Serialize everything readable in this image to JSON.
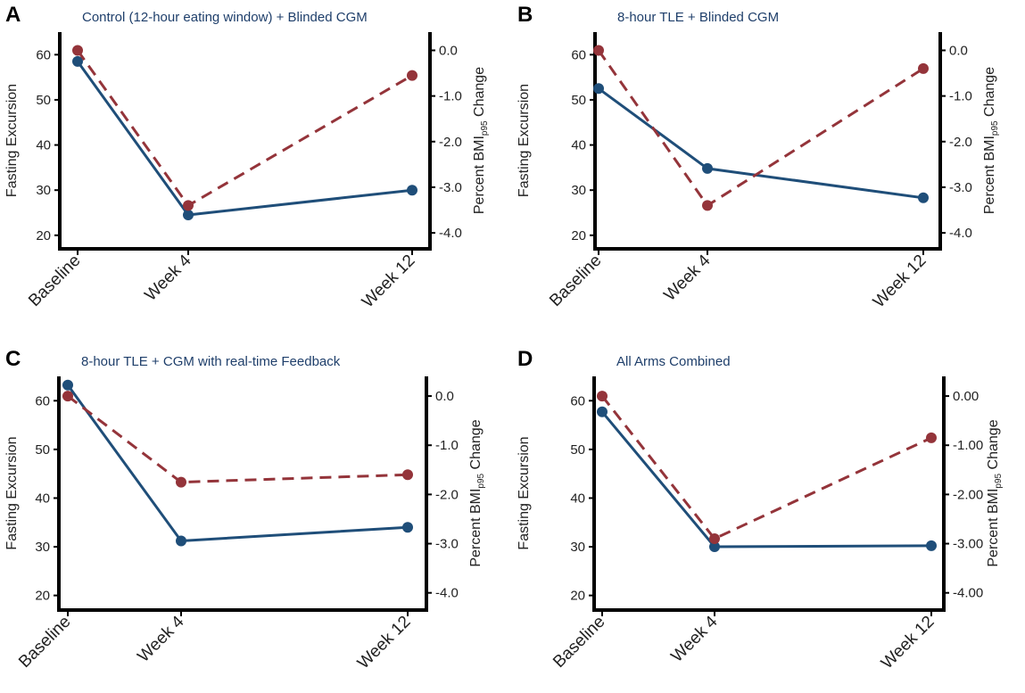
{
  "figure": {
    "series_colors": {
      "fasting_excursion": "#1f4e79",
      "bmi_change": "#94343a"
    },
    "x_axis_labels": [
      "Baseline",
      "Week 4",
      "Week 12"
    ],
    "left_axis_label": "Fasting Excursion",
    "right_axis_label_main": "Percent BMI",
    "right_axis_label_sub": "p95",
    "right_axis_label_tail": " Change"
  },
  "chart_data": [
    {
      "panel_letter": "A",
      "title": "Control (12-hour eating window) + Blinded CGM",
      "type": "line",
      "categories": [
        "Baseline",
        "Week 4",
        "Week 12"
      ],
      "left_axis": {
        "label": "Fasting Excursion",
        "range": [
          17,
          65
        ],
        "ticks": [
          20,
          30,
          40,
          50,
          60
        ],
        "tick_labels": [
          "20",
          "30",
          "40",
          "50",
          "60"
        ]
      },
      "right_axis": {
        "label": "Percent BMIp95 Change",
        "range": [
          -4.35,
          0.4
        ],
        "ticks": [
          0,
          -1,
          -2,
          -3,
          -4
        ],
        "tick_labels": [
          "0.0",
          "-1.0",
          "-2.0",
          "-3.0",
          "-4.0"
        ]
      },
      "series": [
        {
          "name": "Fasting Excursion",
          "axis": "left",
          "style": "solid",
          "values": [
            58.5,
            24.5,
            30
          ]
        },
        {
          "name": "Percent BMIp95 Change",
          "axis": "right",
          "style": "dashed",
          "values": [
            0.0,
            -3.4,
            -0.55
          ]
        }
      ]
    },
    {
      "panel_letter": "B",
      "title": "8-hour TLE + Blinded CGM",
      "type": "line",
      "categories": [
        "Baseline",
        "Week 4",
        "Week 12"
      ],
      "left_axis": {
        "label": "Fasting Excursion",
        "range": [
          17,
          65
        ],
        "ticks": [
          20,
          30,
          40,
          50,
          60
        ],
        "tick_labels": [
          "20",
          "30",
          "40",
          "50",
          "60"
        ]
      },
      "right_axis": {
        "label": "Percent BMIp95 Change",
        "range": [
          -4.35,
          0.4
        ],
        "ticks": [
          0,
          -1,
          -2,
          -3,
          -4
        ],
        "tick_labels": [
          "0.0",
          "-1.0",
          "-2.0",
          "-3.0",
          "-4.0"
        ]
      },
      "series": [
        {
          "name": "Fasting Excursion",
          "axis": "left",
          "style": "solid",
          "values": [
            52.5,
            34.8,
            28.3
          ]
        },
        {
          "name": "Percent BMIp95 Change",
          "axis": "right",
          "style": "dashed",
          "values": [
            0.0,
            -3.4,
            -0.4
          ]
        }
      ]
    },
    {
      "panel_letter": "C",
      "title": "8-hour TLE + CGM with real-time Feedback",
      "type": "line",
      "categories": [
        "Baseline",
        "Week 4",
        "Week 12"
      ],
      "left_axis": {
        "label": "Fasting Excursion",
        "range": [
          17,
          65
        ],
        "ticks": [
          20,
          30,
          40,
          50,
          60
        ],
        "tick_labels": [
          "20",
          "30",
          "40",
          "50",
          "60"
        ]
      },
      "right_axis": {
        "label": "Percent BMIp95 Change",
        "range": [
          -4.35,
          0.4
        ],
        "ticks": [
          0,
          -1,
          -2,
          -3,
          -4
        ],
        "tick_labels": [
          "0.0",
          "-1.0",
          "-2.0",
          "-3.0",
          "-4.0"
        ]
      },
      "series": [
        {
          "name": "Fasting Excursion",
          "axis": "left",
          "style": "solid",
          "values": [
            63.2,
            31.2,
            34.0
          ]
        },
        {
          "name": "Percent BMIp95 Change",
          "axis": "right",
          "style": "dashed",
          "values": [
            0.0,
            -1.75,
            -1.6
          ]
        }
      ]
    },
    {
      "panel_letter": "D",
      "title": "All Arms Combined",
      "type": "line",
      "categories": [
        "Baseline",
        "Week 4",
        "Week 12"
      ],
      "left_axis": {
        "label": "Fasting Excursion",
        "range": [
          17,
          65
        ],
        "ticks": [
          20,
          30,
          40,
          50,
          60
        ],
        "tick_labels": [
          "20",
          "30",
          "40",
          "50",
          "60"
        ]
      },
      "right_axis": {
        "label": "Percent BMIp95 Change",
        "range": [
          -4.35,
          0.4
        ],
        "ticks": [
          0,
          -1,
          -2,
          -3,
          -4
        ],
        "tick_labels": [
          "0.00",
          "-1.00",
          "-2.00",
          "-3.00",
          "-4.00"
        ]
      },
      "series": [
        {
          "name": "Fasting Excursion",
          "axis": "left",
          "style": "solid",
          "values": [
            57.7,
            30.0,
            30.2
          ]
        },
        {
          "name": "Percent BMIp95 Change",
          "axis": "right",
          "style": "dashed",
          "values": [
            0.0,
            -2.9,
            -0.85
          ]
        }
      ]
    }
  ]
}
